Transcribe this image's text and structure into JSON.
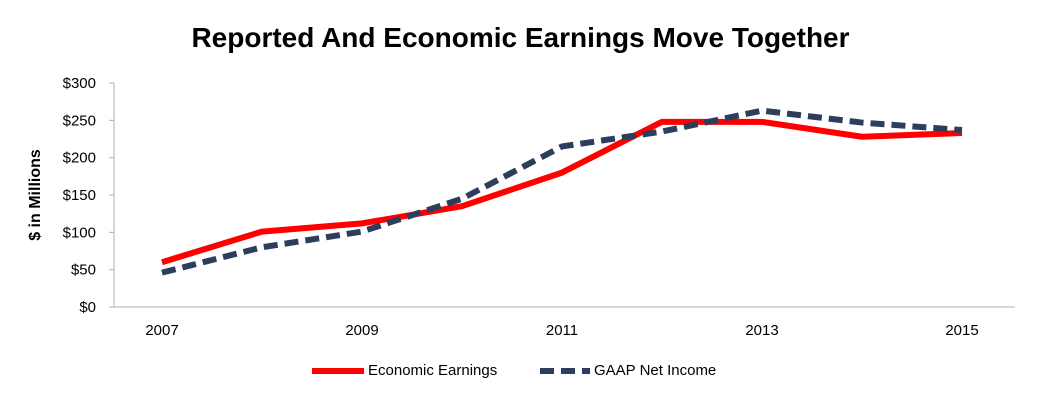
{
  "chart_data": {
    "type": "line",
    "title": "Reported And Economic Earnings Move Together",
    "ylabel": "$ in Millions",
    "xlabel": "",
    "x": [
      2007,
      2008,
      2009,
      2010,
      2011,
      2012,
      2013,
      2014,
      2015
    ],
    "x_tick_labels": [
      "2007",
      "2009",
      "2011",
      "2013",
      "2015"
    ],
    "y_tick_labels": [
      "$0",
      "$50",
      "$100",
      "$150",
      "$200",
      "$250",
      "$300"
    ],
    "ylim": [
      0,
      300
    ],
    "grid": false,
    "legend_position": "bottom",
    "series": [
      {
        "name": "Economic Earnings",
        "color": "#ff0000",
        "style": "solid",
        "values": [
          60,
          101,
          112,
          135,
          180,
          248,
          248,
          228,
          233
        ]
      },
      {
        "name": "GAAP Net Income",
        "color": "#2c3e5c",
        "style": "dashed",
        "values": [
          46,
          80,
          101,
          145,
          215,
          235,
          263,
          247,
          237
        ]
      }
    ]
  }
}
